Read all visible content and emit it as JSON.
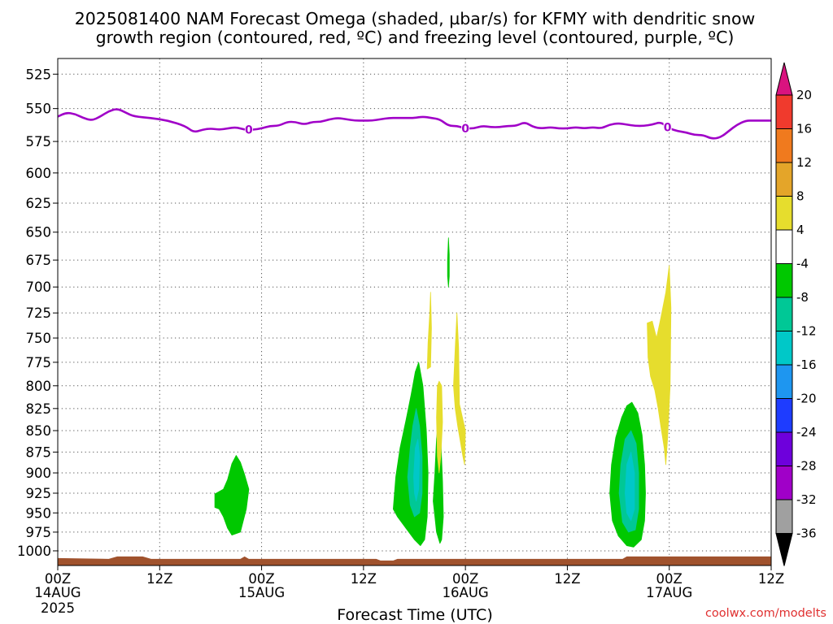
{
  "chart_data": {
    "type": "heatmap",
    "title_lines": [
      "2025081400 NAM Forecast Omega (shaded, µbar/s) for KFMY with dendritic snow",
      "growth region (contoured, red, ºC) and freezing level (contoured, purple, ºC)"
    ],
    "xlabel": "Forecast Time (UTC)",
    "credit": "coolwx.com/modelts",
    "x_range_hours": [
      0,
      84
    ],
    "x_ticks": [
      {
        "hour": 0,
        "label": "00Z",
        "date": "14AUG",
        "year": "2025"
      },
      {
        "hour": 12,
        "label": "12Z",
        "date": "",
        "year": ""
      },
      {
        "hour": 24,
        "label": "00Z",
        "date": "15AUG",
        "year": ""
      },
      {
        "hour": 36,
        "label": "12Z",
        "date": "",
        "year": ""
      },
      {
        "hour": 48,
        "label": "00Z",
        "date": "16AUG",
        "year": ""
      },
      {
        "hour": 60,
        "label": "12Z",
        "date": "",
        "year": ""
      },
      {
        "hour": 72,
        "label": "00Z",
        "date": "17AUG",
        "year": ""
      },
      {
        "hour": 84,
        "label": "12Z",
        "date": "",
        "year": ""
      }
    ],
    "y_ticks": [
      525,
      550,
      575,
      600,
      625,
      650,
      675,
      700,
      725,
      750,
      775,
      800,
      825,
      850,
      875,
      900,
      925,
      950,
      975,
      1000
    ],
    "y_range_mb": [
      514,
      1020
    ],
    "grid": true,
    "colorbar": {
      "levels": [
        "20",
        "16",
        "12",
        "8",
        "4",
        "-4",
        "-8",
        "-12",
        "-16",
        "-20",
        "-24",
        "-28",
        "-32",
        "-36"
      ],
      "colors": [
        "#d9137f",
        "#f03a2d",
        "#f07a1e",
        "#e4a529",
        "#e6dd2d",
        "#ffffff",
        "#00c800",
        "#00c896",
        "#00c8c8",
        "#1e96f0",
        "#1e3cff",
        "#6e00dc",
        "#a000c8",
        "#a0a0a0",
        "#000000"
      ]
    },
    "freezing_level": {
      "color": "#a000c8",
      "label": "0",
      "label_hours": [
        22.5,
        48,
        71.8
      ],
      "points": [
        [
          0,
          556
        ],
        [
          1,
          553
        ],
        [
          2,
          554
        ],
        [
          3,
          557
        ],
        [
          4,
          559
        ],
        [
          5,
          556
        ],
        [
          6,
          552
        ],
        [
          7,
          550
        ],
        [
          8,
          553
        ],
        [
          9,
          556
        ],
        [
          11,
          557
        ],
        [
          13,
          559
        ],
        [
          15,
          563
        ],
        [
          16,
          568
        ],
        [
          17,
          566
        ],
        [
          18,
          565
        ],
        [
          19,
          566
        ],
        [
          20,
          565
        ],
        [
          21,
          564
        ],
        [
          22,
          566
        ],
        [
          23,
          566
        ],
        [
          24,
          565
        ],
        [
          25,
          563
        ],
        [
          26,
          563
        ],
        [
          27,
          560
        ],
        [
          28,
          560
        ],
        [
          29,
          562
        ],
        [
          30,
          560
        ],
        [
          31,
          560
        ],
        [
          32,
          558
        ],
        [
          33,
          557
        ],
        [
          34,
          558
        ],
        [
          35,
          559
        ],
        [
          36,
          559
        ],
        [
          37,
          559
        ],
        [
          38,
          558
        ],
        [
          39,
          557
        ],
        [
          40,
          557
        ],
        [
          41,
          557
        ],
        [
          42,
          557
        ],
        [
          43,
          556
        ],
        [
          44,
          557
        ],
        [
          45,
          558
        ],
        [
          46,
          563
        ],
        [
          47,
          563
        ],
        [
          48,
          565
        ],
        [
          49,
          565
        ],
        [
          50,
          563
        ],
        [
          51,
          564
        ],
        [
          52,
          564
        ],
        [
          53,
          563
        ],
        [
          54,
          563
        ],
        [
          55,
          560
        ],
        [
          56,
          564
        ],
        [
          57,
          565
        ],
        [
          58,
          564
        ],
        [
          59,
          565
        ],
        [
          60,
          565
        ],
        [
          61,
          564
        ],
        [
          62,
          565
        ],
        [
          63,
          564
        ],
        [
          64,
          565
        ],
        [
          65,
          562
        ],
        [
          66,
          561
        ],
        [
          67,
          562
        ],
        [
          68,
          563
        ],
        [
          69,
          563
        ],
        [
          70,
          562
        ],
        [
          71,
          560
        ],
        [
          72,
          565
        ],
        [
          73,
          567
        ],
        [
          74,
          568
        ],
        [
          75,
          570
        ],
        [
          76,
          570
        ],
        [
          77,
          573
        ],
        [
          78,
          572
        ],
        [
          79,
          567
        ],
        [
          80,
          562
        ],
        [
          81,
          559
        ],
        [
          82,
          559
        ],
        [
          83,
          559
        ],
        [
          84,
          559
        ]
      ]
    },
    "omega_regions": [
      {
        "level": "-4",
        "color": "#00c800",
        "polygon": [
          [
            18.5,
            943
          ],
          [
            18.5,
            926
          ],
          [
            19.5,
            920
          ],
          [
            20,
            908
          ],
          [
            20.5,
            889
          ],
          [
            21,
            879
          ],
          [
            21.5,
            887
          ],
          [
            22,
            902
          ],
          [
            22.5,
            920
          ],
          [
            22.2,
            945
          ],
          [
            21.5,
            975
          ],
          [
            20.5,
            979
          ],
          [
            20,
            970
          ],
          [
            19.5,
            955
          ],
          [
            19,
            945
          ]
        ]
      },
      {
        "level": "-4",
        "color": "#00c800",
        "polygon": [
          [
            39.5,
            945
          ],
          [
            39.8,
            905
          ],
          [
            40.3,
            870
          ],
          [
            41,
            838
          ],
          [
            41.6,
            810
          ],
          [
            42.1,
            785
          ],
          [
            42.5,
            775
          ],
          [
            43,
            800
          ],
          [
            43.4,
            850
          ],
          [
            43.6,
            900
          ],
          [
            43.5,
            955
          ],
          [
            43.2,
            985
          ],
          [
            42.7,
            993
          ],
          [
            42,
            985
          ],
          [
            41,
            970
          ],
          [
            40,
            955
          ]
        ]
      },
      {
        "level": "-8",
        "color": "#00c896",
        "polygon": [
          [
            41.2,
            905
          ],
          [
            41.5,
            870
          ],
          [
            41.8,
            845
          ],
          [
            42.2,
            825
          ],
          [
            42.6,
            845
          ],
          [
            42.9,
            880
          ],
          [
            42.9,
            925
          ],
          [
            42.6,
            950
          ],
          [
            42,
            955
          ],
          [
            41.5,
            940
          ]
        ]
      },
      {
        "level": "-12",
        "color": "#00c8c8",
        "polygon": [
          [
            41.9,
            905
          ],
          [
            42.1,
            870
          ],
          [
            42.4,
            860
          ],
          [
            42.6,
            880
          ],
          [
            42.5,
            920
          ],
          [
            42.2,
            935
          ],
          [
            42,
            925
          ]
        ]
      },
      {
        "level": "-4",
        "color": "#00c800",
        "polygon": [
          [
            44.4,
            900
          ],
          [
            44.6,
            860
          ],
          [
            44.8,
            840
          ],
          [
            45.1,
            860
          ],
          [
            45.3,
            910
          ],
          [
            45.4,
            955
          ],
          [
            45.2,
            985
          ],
          [
            45,
            990
          ],
          [
            44.6,
            975
          ],
          [
            44.4,
            955
          ],
          [
            44.2,
            935
          ]
        ]
      },
      {
        "level": "-4",
        "color": "#00c800",
        "polygon": [
          [
            45.9,
            690
          ],
          [
            45.9,
            675
          ],
          [
            46,
            655
          ],
          [
            46.1,
            670
          ],
          [
            46.1,
            690
          ],
          [
            46,
            700
          ]
        ]
      },
      {
        "level": "-4",
        "color": "#00c800",
        "polygon": [
          [
            65,
            925
          ],
          [
            65.2,
            890
          ],
          [
            65.7,
            858
          ],
          [
            66.4,
            835
          ],
          [
            67,
            822
          ],
          [
            67.6,
            818
          ],
          [
            68.3,
            830
          ],
          [
            68.8,
            855
          ],
          [
            69.1,
            890
          ],
          [
            69.2,
            925
          ],
          [
            69.1,
            960
          ],
          [
            68.7,
            985
          ],
          [
            67.8,
            995
          ],
          [
            67,
            993
          ],
          [
            66,
            980
          ],
          [
            65.3,
            960
          ]
        ]
      },
      {
        "level": "-8",
        "color": "#00c896",
        "polygon": [
          [
            66.1,
            925
          ],
          [
            66.3,
            890
          ],
          [
            66.8,
            860
          ],
          [
            67.5,
            850
          ],
          [
            68.1,
            865
          ],
          [
            68.4,
            900
          ],
          [
            68.4,
            945
          ],
          [
            68,
            972
          ],
          [
            67.2,
            975
          ],
          [
            66.5,
            962
          ]
        ]
      },
      {
        "level": "-12",
        "color": "#00c8c8",
        "polygon": [
          [
            66.8,
            925
          ],
          [
            67,
            890
          ],
          [
            67.5,
            875
          ],
          [
            67.9,
            900
          ],
          [
            67.9,
            945
          ],
          [
            67.5,
            960
          ],
          [
            67,
            950
          ]
        ]
      },
      {
        "level": "4",
        "color": "#e6dd2d",
        "polygon": [
          [
            43.5,
            782
          ],
          [
            43.6,
            755
          ],
          [
            43.8,
            725
          ],
          [
            43.9,
            705
          ],
          [
            44,
            740
          ],
          [
            43.9,
            780
          ]
        ]
      },
      {
        "level": "4",
        "color": "#e6dd2d",
        "polygon": [
          [
            44.6,
            835
          ],
          [
            44.7,
            800
          ],
          [
            44.9,
            795
          ],
          [
            45.2,
            800
          ],
          [
            45.3,
            840
          ],
          [
            45.1,
            880
          ],
          [
            44.9,
            900
          ],
          [
            44.7,
            880
          ]
        ]
      },
      {
        "level": "4",
        "color": "#e6dd2d",
        "polygon": [
          [
            46.6,
            800
          ],
          [
            46.8,
            760
          ],
          [
            47,
            725
          ],
          [
            47.2,
            760
          ],
          [
            47.3,
            820
          ],
          [
            48,
            850
          ],
          [
            47.9,
            890
          ],
          [
            47.7,
            880
          ],
          [
            47.1,
            845
          ],
          [
            46.8,
            825
          ]
        ]
      },
      {
        "level": "4",
        "color": "#e6dd2d",
        "polygon": [
          [
            69.4,
            735
          ],
          [
            70,
            733
          ],
          [
            70.5,
            750
          ],
          [
            71,
            730
          ],
          [
            71.6,
            705
          ],
          [
            72,
            680
          ],
          [
            72.2,
            720
          ],
          [
            72.1,
            800
          ],
          [
            71.8,
            860
          ],
          [
            71.6,
            890
          ],
          [
            71.4,
            870
          ],
          [
            71,
            845
          ],
          [
            70.7,
            825
          ],
          [
            70.3,
            805
          ],
          [
            69.8,
            790
          ],
          [
            69.5,
            770
          ]
        ]
      }
    ]
  }
}
